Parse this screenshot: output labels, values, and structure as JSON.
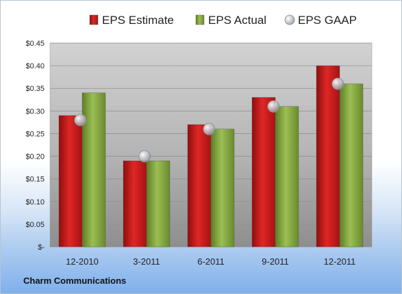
{
  "footer": {
    "company": "Charm Communications"
  },
  "chart_data": {
    "type": "bar",
    "categories": [
      "12-2010",
      "3-2011",
      "6-2011",
      "9-2011",
      "12-2011"
    ],
    "series": [
      {
        "name": "EPS Estimate",
        "values": [
          0.29,
          0.19,
          0.27,
          0.33,
          0.4
        ],
        "color": "#cc1a1a",
        "mark": "bar"
      },
      {
        "name": "EPS Actual",
        "values": [
          0.34,
          0.19,
          0.26,
          0.31,
          0.36
        ],
        "color": "#7fa33c",
        "mark": "bar"
      },
      {
        "name": "EPS GAAP",
        "values": [
          0.28,
          0.2,
          0.26,
          0.31,
          0.36
        ],
        "color": "#b9bcc0",
        "mark": "circle"
      }
    ],
    "ylim": [
      0,
      0.45
    ],
    "yticks": [
      0,
      0.05,
      0.1,
      0.15,
      0.2,
      0.25,
      0.3,
      0.35,
      0.4,
      0.45
    ],
    "ytick_labels": [
      "$-",
      "$0.05",
      "$0.10",
      "$0.15",
      "$0.20",
      "$0.25",
      "$0.30",
      "$0.35",
      "$0.40",
      "$0.45"
    ],
    "grid": true,
    "legend": "top"
  }
}
